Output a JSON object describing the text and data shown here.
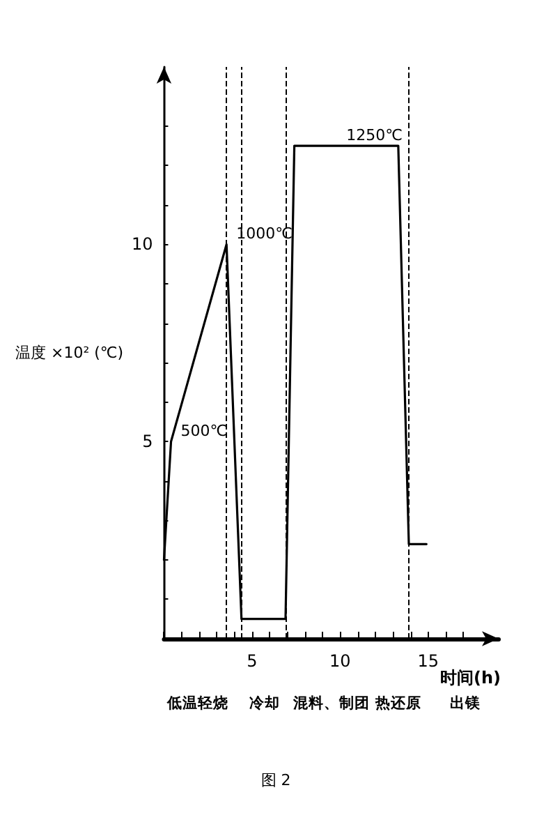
{
  "chart_data": {
    "type": "line",
    "xlabel": "时间(h)",
    "ylabel": "温度 ×10² (℃)",
    "x": [
      0,
      0.4,
      3.55,
      4.4,
      6.9,
      7.4,
      13.3,
      13.9,
      14.9
    ],
    "series": [
      {
        "color": "#000000",
        "values": [
          2.0,
          5,
          10,
          0.5,
          0.5,
          12.5,
          12.5,
          2.4,
          2.4
        ]
      }
    ],
    "xlim": [
      0,
      19
    ],
    "xticks": [
      {
        "value": 0,
        "label": null
      },
      {
        "value": 1,
        "label": null
      },
      {
        "value": 2,
        "label": null
      },
      {
        "value": 3,
        "label": null
      },
      {
        "value": 4,
        "label": null
      },
      5,
      {
        "value": 6,
        "label": null
      },
      {
        "value": 7,
        "label": null
      },
      {
        "value": 8,
        "label": null
      },
      {
        "value": 9,
        "label": null
      },
      10,
      {
        "value": 11,
        "label": null
      },
      {
        "value": 12,
        "label": null
      },
      {
        "value": 13,
        "label": null
      },
      {
        "value": 14,
        "label": null
      },
      15,
      {
        "value": 16,
        "label": null
      },
      {
        "value": 17,
        "label": null
      }
    ],
    "ylim": [
      0,
      14.5
    ],
    "yticks": [
      {
        "value": 1,
        "label": null
      },
      {
        "value": 2,
        "label": null
      },
      {
        "value": 3,
        "label": null
      },
      {
        "value": 4,
        "label": null
      },
      5,
      {
        "value": 6,
        "label": null
      },
      {
        "value": 7,
        "label": null
      },
      {
        "value": 8,
        "label": null
      },
      {
        "value": 9,
        "label": null
      },
      10,
      {
        "value": 11,
        "label": null
      },
      {
        "value": 12,
        "label": null
      },
      {
        "value": 13,
        "label": null
      }
    ],
    "ref_lines": [
      {
        "axis": "x",
        "value": 3.5,
        "line_style": "dashed"
      },
      {
        "axis": "x",
        "value": 4.4,
        "line_style": "dashed"
      },
      {
        "axis": "x",
        "value": 6.9,
        "line_style": "dashed"
      },
      {
        "axis": "x",
        "value": 13.9,
        "line_style": "dashed"
      }
    ],
    "annotations": [
      {
        "text": "500℃",
        "x": 0.4,
        "y": 5
      },
      {
        "text": "1000℃",
        "x": 3.55,
        "y": 10
      },
      {
        "text": "1250℃",
        "x": 9.8,
        "y": 12.5
      },
      "低温轻烧",
      "冷却",
      "混料、制团",
      "热还原",
      "出镁"
    ],
    "title": "图 2",
    "grid": false,
    "marker": "none",
    "line_style": "solid"
  }
}
